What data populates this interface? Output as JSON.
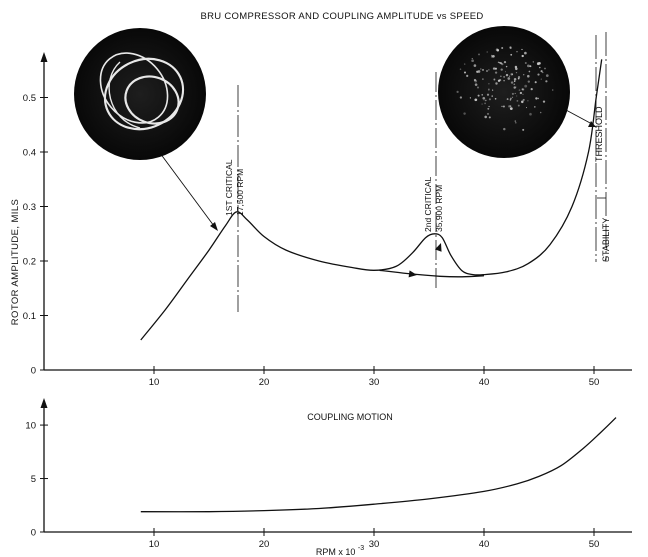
{
  "chart_data": [
    {
      "type": "line",
      "title": "BRU COMPRESSOR AND COUPLING AMPLITUDE vs SPEED",
      "ylabel": "ROTOR AMPLITUDE, MILS",
      "xlim": [
        0,
        55
      ],
      "ylim": [
        0,
        0.6
      ],
      "x_ticks": [
        "10",
        "20",
        "30",
        "40",
        "50"
      ],
      "y_ticks": [
        "0",
        "0.1",
        "0.2",
        "0.3",
        "0.4",
        "0.5"
      ],
      "grid": false,
      "series": [
        {
          "x": [
            8.8,
            11,
            13,
            15,
            16.5,
            17.5,
            18.5,
            20,
            22,
            25,
            28,
            30,
            32,
            33.5,
            34.7,
            35.5,
            36.2,
            37,
            38,
            39,
            40,
            42,
            44,
            46,
            48,
            49.5,
            50.2,
            50.7
          ],
          "y": [
            0.055,
            0.11,
            0.165,
            0.22,
            0.265,
            0.29,
            0.275,
            0.245,
            0.22,
            0.2,
            0.188,
            0.183,
            0.19,
            0.215,
            0.243,
            0.25,
            0.243,
            0.21,
            0.182,
            0.175,
            0.175,
            0.18,
            0.195,
            0.23,
            0.3,
            0.4,
            0.5,
            0.57
          ]
        },
        {
          "x": [
            30.5,
            33,
            36,
            38,
            40
          ],
          "y": [
            0.183,
            0.177,
            0.172,
            0.171,
            0.173
          ]
        }
      ],
      "annotations": {
        "first_critical": {
          "x": 17.5,
          "line1": "1ST CRITICAL",
          "line2": "17,500 RPM"
        },
        "second_critical": {
          "x": 35.9,
          "line1": "2nd CRITICAL",
          "line2": "35,900 RPM"
        },
        "threshold": "THRESHOLD",
        "stability": "STABILITY"
      }
    },
    {
      "type": "line",
      "title": "COUPLING MOTION",
      "xlabel": "RPM x 10",
      "xlabel_exp": "-3",
      "xlim": [
        0,
        55
      ],
      "ylim": [
        0,
        13
      ],
      "x_ticks": [
        "10",
        "20",
        "30",
        "40",
        "50"
      ],
      "y_ticks": [
        "0",
        "5",
        "10"
      ],
      "grid": false,
      "series": [
        {
          "x": [
            8.8,
            15,
            20,
            25,
            30,
            35,
            40,
            43,
            45,
            47,
            49,
            50.5,
            52
          ],
          "y": [
            1.9,
            1.9,
            2.0,
            2.2,
            2.6,
            3.1,
            3.8,
            4.5,
            5.2,
            6.2,
            7.8,
            9.2,
            10.7
          ]
        }
      ]
    }
  ]
}
